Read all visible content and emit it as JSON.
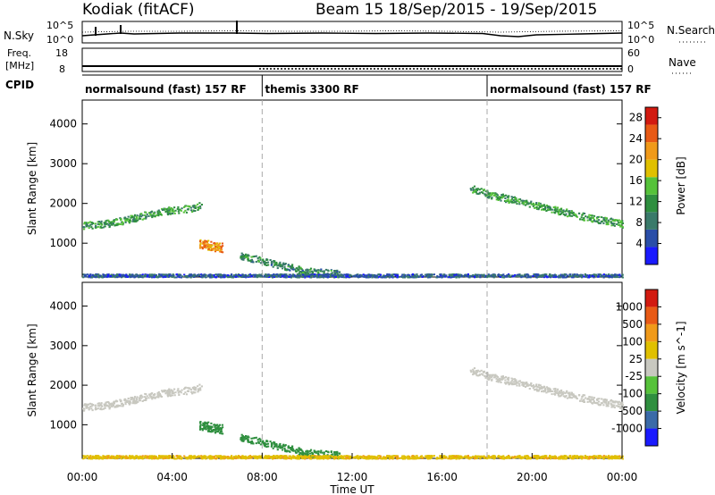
{
  "header": {
    "station": "Kodiak (fitACF)",
    "beam_info": "Beam 15  18/Sep/2015 - 19/Sep/2015"
  },
  "noise_panel": {
    "left_label": "N.Sky",
    "right_label": "N.Search",
    "left_ticks": [
      "10^5",
      "10^0"
    ],
    "right_ticks": [
      "10^5",
      "10^0"
    ]
  },
  "freq_panel": {
    "left_label_1": "Freq.",
    "left_label_2": "[MHz]",
    "right_label": "Nave",
    "left_ticks": [
      "18",
      "8"
    ],
    "right_ticks": [
      "60",
      "0"
    ]
  },
  "cpid_panel": {
    "label": "CPID",
    "segments": [
      {
        "label": "normalsound (fast) 157 RF",
        "start_hour": 0,
        "end_hour": 8
      },
      {
        "label": "themis 3300 RF",
        "start_hour": 8,
        "end_hour": 18
      },
      {
        "label": "normalsound (fast) 157 RF",
        "start_hour": 18,
        "end_hour": 24
      }
    ]
  },
  "colors": {
    "power_scale": [
      "#1a1aff",
      "#2a4ea8",
      "#3a7a6a",
      "#2f8f3f",
      "#56c23a",
      "#e0c000",
      "#f09a1a",
      "#e85a15",
      "#d21a10"
    ],
    "velocity_scale": [
      "#d21a10",
      "#e85a15",
      "#f09a1a",
      "#e0c000",
      "#c8c8c0",
      "#56c23a",
      "#2f8f3f",
      "#3a6aa8",
      "#1a1aff"
    ],
    "ground_scatter": "#c8c8c0",
    "boundary_line": "#aaaaaa"
  },
  "chart_data": [
    {
      "type": "heatmap",
      "title": "",
      "xlabel": "Time UT",
      "ylabel": "Slant Range [km]",
      "xlim": [
        "00:00",
        "24:00"
      ],
      "ylim": [
        150,
        4600
      ],
      "x_ticks": [
        "00:00",
        "04:00",
        "08:00",
        "12:00",
        "16:00",
        "20:00",
        "00:00"
      ],
      "y_ticks": [
        1000,
        2000,
        3000,
        4000
      ],
      "colorbar": {
        "label": "Power [dB]",
        "ticks": [
          "4",
          "8",
          "12",
          "16",
          "20",
          "24",
          "28"
        ],
        "range": [
          0,
          30
        ]
      },
      "features": [
        {
          "name": "band",
          "x_hours": [
            0.0,
            1.0,
            2.0,
            3.0,
            4.0,
            5.0,
            5.3
          ],
          "y_km": [
            1450,
            1500,
            1600,
            1750,
            1850,
            1900,
            2000
          ],
          "value_db": 12
        },
        {
          "name": "patch",
          "x_hours": [
            5.2,
            6.2
          ],
          "y_km": [
            1000,
            900
          ],
          "value_db": 22
        },
        {
          "name": "band",
          "x_hours": [
            7.0,
            8.5,
            10.0,
            11.5
          ],
          "y_km": [
            700,
            500,
            300,
            250
          ],
          "value_db": 10
        },
        {
          "name": "band",
          "x_hours": [
            17.2,
            18.0,
            19.5,
            21.0,
            22.5,
            24.0
          ],
          "y_km": [
            2400,
            2250,
            2050,
            1850,
            1650,
            1500
          ],
          "value_db": 12
        },
        {
          "name": "band",
          "x_hours": [
            0.0,
            24.0
          ],
          "y_km": [
            200,
            200
          ],
          "value_db": 6
        }
      ]
    },
    {
      "type": "heatmap",
      "title": "",
      "xlabel": "Time UT",
      "ylabel": "Slant Range [km]",
      "xlim": [
        "00:00",
        "24:00"
      ],
      "ylim": [
        150,
        4600
      ],
      "x_ticks": [
        "00:00",
        "04:00",
        "08:00",
        "12:00",
        "16:00",
        "20:00",
        "00:00"
      ],
      "y_ticks": [
        1000,
        2000,
        3000,
        4000
      ],
      "colorbar": {
        "label": "Velocity [m s^-1]",
        "ticks": [
          "1000",
          "500",
          "100",
          "25",
          "-25",
          "-100",
          "-500",
          "-1000"
        ],
        "range": [
          -1000,
          1000
        ]
      },
      "features": [
        {
          "name": "ground-scatter-band",
          "x_hours": [
            0.0,
            1.0,
            2.0,
            3.0,
            4.0,
            5.0,
            5.3
          ],
          "y_km": [
            1450,
            1500,
            1600,
            1750,
            1850,
            1900,
            2000
          ],
          "value_ms": 0
        },
        {
          "name": "patch",
          "x_hours": [
            5.2,
            6.2
          ],
          "y_km": [
            1000,
            900
          ],
          "value_ms": 150
        },
        {
          "name": "band",
          "x_hours": [
            7.0,
            8.5,
            10.0,
            11.5
          ],
          "y_km": [
            700,
            500,
            300,
            250
          ],
          "value_ms": 200
        },
        {
          "name": "ground-scatter-band",
          "x_hours": [
            17.2,
            18.0,
            19.5,
            21.0,
            22.5,
            24.0
          ],
          "y_km": [
            2400,
            2250,
            2050,
            1850,
            1650,
            1500
          ],
          "value_ms": 0
        },
        {
          "name": "band",
          "x_hours": [
            0.0,
            24.0
          ],
          "y_km": [
            200,
            200
          ],
          "value_ms": -80
        }
      ]
    }
  ]
}
